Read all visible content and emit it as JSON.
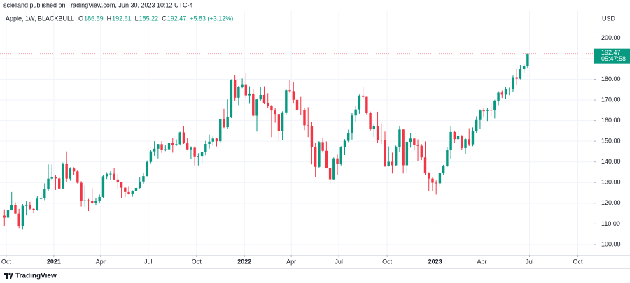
{
  "chart_data": {
    "type": "candlestick",
    "publisher": "sclelland published on TradingView.com, Jun 30, 2023 10:12 UTC-4",
    "title": "Apple, 1W, BLACKBULL",
    "ohlc_labels": [
      "O",
      "H",
      "L",
      "C"
    ],
    "change_label": "+5.83 (+3.12%)",
    "currency": "USD",
    "countdown": "05:47:58",
    "brand": "TradingView",
    "up_color": "#089981",
    "down_color": "#f23645",
    "grid": true,
    "xlim": [
      -1.2,
      161
    ],
    "xticks": [
      {
        "value": 0.5,
        "label": "Oct"
      },
      {
        "value": 13.5,
        "label": "2021"
      },
      {
        "value": 26.3,
        "label": "Apr"
      },
      {
        "value": 39.3,
        "label": "Jul"
      },
      {
        "value": 52.5,
        "label": "Oct"
      },
      {
        "value": 65.6,
        "label": "2022"
      },
      {
        "value": 78.4,
        "label": "Apr"
      },
      {
        "value": 91.4,
        "label": "Jul"
      },
      {
        "value": 104.6,
        "label": "Oct"
      },
      {
        "value": 117.7,
        "label": "2023"
      },
      {
        "value": 130.5,
        "label": "Apr"
      },
      {
        "value": 143.5,
        "label": "Jul"
      },
      {
        "value": 156.7,
        "label": "Oct"
      }
    ],
    "ylim": [
      94.9,
      213.0
    ],
    "yticks": [
      {
        "value": 100,
        "label": "100.00"
      },
      {
        "value": 110,
        "label": "110.00"
      },
      {
        "value": 120,
        "label": "120.00"
      },
      {
        "value": 130,
        "label": "130.00"
      },
      {
        "value": 140,
        "label": "140.00"
      },
      {
        "value": 150,
        "label": "150.00"
      },
      {
        "value": 160,
        "label": "160.00"
      },
      {
        "value": 170,
        "label": "170.00"
      },
      {
        "value": 180,
        "label": "180.00"
      },
      {
        "value": 190,
        "label": "190.00"
      },
      {
        "value": 200,
        "label": "200.00"
      }
    ],
    "ohlc": [
      [
        114.0,
        117.0,
        109.0,
        113.0
      ],
      [
        113.0,
        118.0,
        112.0,
        116.9
      ],
      [
        116.9,
        125.4,
        116.5,
        119.0
      ],
      [
        119.0,
        120.4,
        114.8,
        115.0
      ],
      [
        115.0,
        117.3,
        107.7,
        108.9
      ],
      [
        108.9,
        119.6,
        107.3,
        118.7
      ],
      [
        118.7,
        121.0,
        114.1,
        119.3
      ],
      [
        119.3,
        120.7,
        116.8,
        117.3
      ],
      [
        117.3,
        117.6,
        115.2,
        116.6
      ],
      [
        116.6,
        123.4,
        116.4,
        122.2
      ],
      [
        122.2,
        125.0,
        120.2,
        122.4
      ],
      [
        122.4,
        129.6,
        121.5,
        126.7
      ],
      [
        126.7,
        138.8,
        126.0,
        131.9
      ],
      [
        131.9,
        138.8,
        131.0,
        132.7
      ],
      [
        132.7,
        133.6,
        126.4,
        132.0
      ],
      [
        132.0,
        132.6,
        126.9,
        127.1
      ],
      [
        127.1,
        139.7,
        126.9,
        139.1
      ],
      [
        139.1,
        145.1,
        130.2,
        131.9
      ],
      [
        131.9,
        137.4,
        130.9,
        136.8
      ],
      [
        136.8,
        137.4,
        133.7,
        135.4
      ],
      [
        135.4,
        136.0,
        129.5,
        129.9
      ],
      [
        129.9,
        130.7,
        118.4,
        121.3
      ],
      [
        121.3,
        128.7,
        118.4,
        121.4
      ],
      [
        121.4,
        122.1,
        116.2,
        121.0
      ],
      [
        121.0,
        127.2,
        119.7,
        120.0
      ],
      [
        120.0,
        122.6,
        118.9,
        121.2
      ],
      [
        121.2,
        124.2,
        119.9,
        123.0
      ],
      [
        123.0,
        133.6,
        122.5,
        133.0
      ],
      [
        133.0,
        135.0,
        131.7,
        134.2
      ],
      [
        134.2,
        135.5,
        131.3,
        134.3
      ],
      [
        134.3,
        137.1,
        131.1,
        131.5
      ],
      [
        131.5,
        134.1,
        126.7,
        130.2
      ],
      [
        130.2,
        130.4,
        122.3,
        127.5
      ],
      [
        127.5,
        128.0,
        122.9,
        125.4
      ],
      [
        125.4,
        128.3,
        124.2,
        124.6
      ],
      [
        124.6,
        126.2,
        123.1,
        125.9
      ],
      [
        125.9,
        128.5,
        124.8,
        127.4
      ],
      [
        127.4,
        132.6,
        127.1,
        130.5
      ],
      [
        130.5,
        134.6,
        129.2,
        133.1
      ],
      [
        133.1,
        140.7,
        133.0,
        140.0
      ],
      [
        140.0,
        145.7,
        139.4,
        145.1
      ],
      [
        145.1,
        150.0,
        143.0,
        146.4
      ],
      [
        146.4,
        148.7,
        141.7,
        148.6
      ],
      [
        148.6,
        150.0,
        144.4,
        145.9
      ],
      [
        145.9,
        148.0,
        145.2,
        146.1
      ],
      [
        146.1,
        149.4,
        145.8,
        149.1
      ],
      [
        149.1,
        151.7,
        144.5,
        148.2
      ],
      [
        148.2,
        150.9,
        147.7,
        148.6
      ],
      [
        148.6,
        154.6,
        148.0,
        154.3
      ],
      [
        154.3,
        157.3,
        148.7,
        149.0
      ],
      [
        149.0,
        151.4,
        145.8,
        146.1
      ],
      [
        146.1,
        147.5,
        141.3,
        146.9
      ],
      [
        146.9,
        147.5,
        138.3,
        142.7
      ],
      [
        142.7,
        144.2,
        138.3,
        142.9
      ],
      [
        142.9,
        144.9,
        139.2,
        144.8
      ],
      [
        144.8,
        150.2,
        143.2,
        148.7
      ],
      [
        148.7,
        153.2,
        146.4,
        149.8
      ],
      [
        149.8,
        152.4,
        147.8,
        151.3
      ],
      [
        151.3,
        151.6,
        147.5,
        150.0
      ],
      [
        150.0,
        161.0,
        149.4,
        160.6
      ],
      [
        160.6,
        165.7,
        156.4,
        156.8
      ],
      [
        156.8,
        170.3,
        156.0,
        161.8
      ],
      [
        161.8,
        180.0,
        161.2,
        179.5
      ],
      [
        179.5,
        182.1,
        169.7,
        171.1
      ],
      [
        171.1,
        176.8,
        167.5,
        176.3
      ],
      [
        176.3,
        180.4,
        175.7,
        177.6
      ],
      [
        177.6,
        182.9,
        171.0,
        172.2
      ],
      [
        172.2,
        176.6,
        168.2,
        173.1
      ],
      [
        173.1,
        175.2,
        162.0,
        162.4
      ],
      [
        162.4,
        170.7,
        154.7,
        170.3
      ],
      [
        170.3,
        176.2,
        169.5,
        172.4
      ],
      [
        172.4,
        176.6,
        168.0,
        168.6
      ],
      [
        168.6,
        173.3,
        166.0,
        167.3
      ],
      [
        167.3,
        167.6,
        152.0,
        164.9
      ],
      [
        164.9,
        166.1,
        159.0,
        163.2
      ],
      [
        163.2,
        163.4,
        150.1,
        155.0
      ],
      [
        155.0,
        164.5,
        150.6,
        164.0
      ],
      [
        164.0,
        175.3,
        163.0,
        174.7
      ],
      [
        174.7,
        179.6,
        173.6,
        174.3
      ],
      [
        174.3,
        178.5,
        168.3,
        170.1
      ],
      [
        170.1,
        171.3,
        164.8,
        165.3
      ],
      [
        165.3,
        171.5,
        162.8,
        165.1
      ],
      [
        165.1,
        166.2,
        155.4,
        157.7
      ],
      [
        157.7,
        166.5,
        152.0,
        157.3
      ],
      [
        157.3,
        159.4,
        138.8,
        147.1
      ],
      [
        147.1,
        149.1,
        132.6,
        137.6
      ],
      [
        137.6,
        150.0,
        137.1,
        149.6
      ],
      [
        149.6,
        151.7,
        144.5,
        145.4
      ],
      [
        145.4,
        149.9,
        136.8,
        137.1
      ],
      [
        137.1,
        137.3,
        129.0,
        131.6
      ],
      [
        131.6,
        142.2,
        131.4,
        141.7
      ],
      [
        141.7,
        143.5,
        133.8,
        138.9
      ],
      [
        138.9,
        147.6,
        138.3,
        147.0
      ],
      [
        147.0,
        151.0,
        143.3,
        150.2
      ],
      [
        150.2,
        155.6,
        149.6,
        154.1
      ],
      [
        154.1,
        163.6,
        150.8,
        162.5
      ],
      [
        162.5,
        167.2,
        159.6,
        165.4
      ],
      [
        165.4,
        172.6,
        163.3,
        172.1
      ],
      [
        172.1,
        176.2,
        170.5,
        171.5
      ],
      [
        171.5,
        171.6,
        163.0,
        163.6
      ],
      [
        163.6,
        164.4,
        155.0,
        155.8
      ],
      [
        155.8,
        158.6,
        152.0,
        157.4
      ],
      [
        157.4,
        164.3,
        149.3,
        150.7
      ],
      [
        150.7,
        158.7,
        148.6,
        150.4
      ],
      [
        150.4,
        154.7,
        137.6,
        138.2
      ],
      [
        138.2,
        147.5,
        137.8,
        140.1
      ],
      [
        140.1,
        144.5,
        134.4,
        138.4
      ],
      [
        138.4,
        147.9,
        137.9,
        147.3
      ],
      [
        147.3,
        157.5,
        145.0,
        155.7
      ],
      [
        155.7,
        155.9,
        134.4,
        138.4
      ],
      [
        138.4,
        150.0,
        134.4,
        149.7
      ],
      [
        149.7,
        153.8,
        146.9,
        151.3
      ],
      [
        151.3,
        151.6,
        145.8,
        148.1
      ],
      [
        148.1,
        150.9,
        140.4,
        147.8
      ],
      [
        147.8,
        148.6,
        140.9,
        142.2
      ],
      [
        142.2,
        149.9,
        133.7,
        134.5
      ],
      [
        134.5,
        135.0,
        125.9,
        131.9
      ],
      [
        131.9,
        132.4,
        125.9,
        129.9
      ],
      [
        129.9,
        131.0,
        124.2,
        129.6
      ],
      [
        129.6,
        135.1,
        128.1,
        134.8
      ],
      [
        134.8,
        138.6,
        133.8,
        137.9
      ],
      [
        137.9,
        147.2,
        137.5,
        145.9
      ],
      [
        145.9,
        157.4,
        141.3,
        154.5
      ],
      [
        154.5,
        155.2,
        149.2,
        151.0
      ],
      [
        151.0,
        156.3,
        150.6,
        152.6
      ],
      [
        152.6,
        153.0,
        145.8,
        146.7
      ],
      [
        146.7,
        151.4,
        143.9,
        151.0
      ],
      [
        151.0,
        156.3,
        147.7,
        148.5
      ],
      [
        148.5,
        156.7,
        147.6,
        155.0
      ],
      [
        155.0,
        162.1,
        154.1,
        160.3
      ],
      [
        160.3,
        165.4,
        155.9,
        164.9
      ],
      [
        164.9,
        166.3,
        161.8,
        164.7
      ],
      [
        164.7,
        166.3,
        159.8,
        165.2
      ],
      [
        165.2,
        168.2,
        162.0,
        165.0
      ],
      [
        165.0,
        170.1,
        161.1,
        169.7
      ],
      [
        169.7,
        174.3,
        167.5,
        173.6
      ],
      [
        173.6,
        174.6,
        171.0,
        172.6
      ],
      [
        172.6,
        176.4,
        170.4,
        175.2
      ],
      [
        175.2,
        176.0,
        172.3,
        175.4
      ],
      [
        175.4,
        181.8,
        173.9,
        181.0
      ],
      [
        181.0,
        184.9,
        177.3,
        180.3
      ],
      [
        180.3,
        186.9,
        180.0,
        184.9
      ],
      [
        184.9,
        187.6,
        182.9,
        186.6
      ],
      [
        186.59,
        192.61,
        185.22,
        192.47
      ]
    ]
  }
}
